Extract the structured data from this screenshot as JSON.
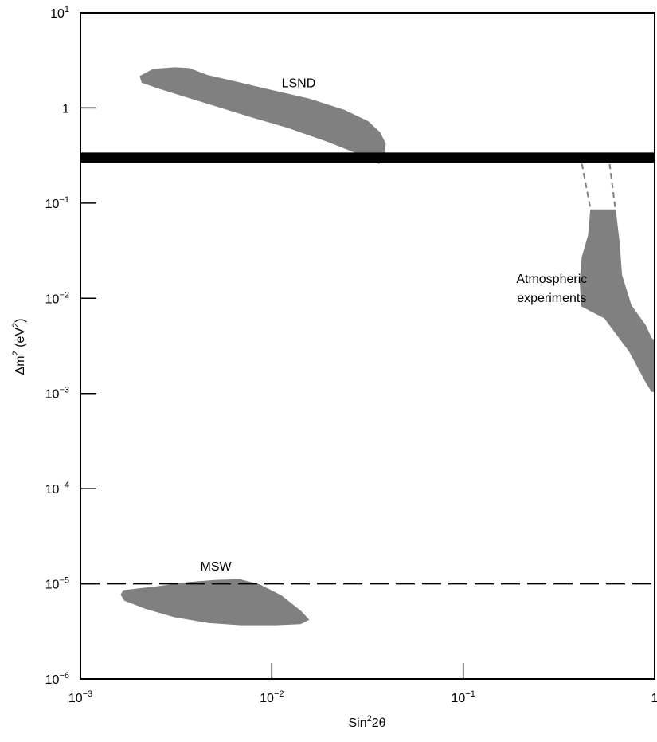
{
  "chart_data": {
    "type": "area",
    "title": "",
    "xlabel": {
      "base": "Sin",
      "sup": "2",
      "rest": "2θ"
    },
    "ylabel": {
      "pre": "Δm",
      "sup1": "2",
      "mid": " (eV",
      "sup2": "2",
      "post": ")"
    },
    "x_scale": "log",
    "y_scale": "log",
    "xlim": [
      0.001,
      1
    ],
    "ylim": [
      1e-06,
      10
    ],
    "x_ticks": [
      {
        "value": 0.001,
        "base": "10",
        "exp": "−3"
      },
      {
        "value": 0.01,
        "base": "10",
        "exp": "−2"
      },
      {
        "value": 0.1,
        "base": "10",
        "exp": "−1"
      },
      {
        "value": 1,
        "base": "1",
        "exp": ""
      }
    ],
    "y_ticks": [
      {
        "value": 1e-06,
        "base": "10",
        "exp": "−6"
      },
      {
        "value": 1e-05,
        "base": "10",
        "exp": "−5"
      },
      {
        "value": 0.0001,
        "base": "10",
        "exp": "−4"
      },
      {
        "value": 0.001,
        "base": "10",
        "exp": "−3"
      },
      {
        "value": 0.01,
        "base": "10",
        "exp": "−2"
      },
      {
        "value": 0.1,
        "base": "10",
        "exp": "−1"
      },
      {
        "value": 1,
        "base": "1",
        "exp": ""
      },
      {
        "value": 10,
        "base": "10",
        "exp": "1"
      }
    ],
    "grid": false,
    "colors": {
      "region": "#808080",
      "line": "#000000",
      "background": "#ffffff"
    },
    "regions": [
      {
        "name": "LSND",
        "label_lines": [
          "LSND"
        ],
        "label_at": [
          0.0138,
          1.65
        ],
        "label_anchor": "middle",
        "boundary": [
          [
            0.00205,
            2.15
          ],
          [
            0.0024,
            2.55
          ],
          [
            0.0031,
            2.65
          ],
          [
            0.0037,
            2.6
          ],
          [
            0.0046,
            2.2
          ],
          [
            0.0063,
            1.9
          ],
          [
            0.0097,
            1.55
          ],
          [
            0.0155,
            1.25
          ],
          [
            0.0238,
            0.95
          ],
          [
            0.0318,
            0.72
          ],
          [
            0.0367,
            0.55
          ],
          [
            0.0392,
            0.42
          ],
          [
            0.0386,
            0.29
          ],
          [
            0.0361,
            0.26
          ],
          [
            0.0296,
            0.32
          ],
          [
            0.0192,
            0.45
          ],
          [
            0.0122,
            0.62
          ],
          [
            0.0079,
            0.8
          ],
          [
            0.0051,
            1.05
          ],
          [
            0.0036,
            1.3
          ],
          [
            0.0026,
            1.6
          ],
          [
            0.0021,
            1.85
          ]
        ]
      },
      {
        "name": "Atmospheric experiments",
        "label_lines": [
          "Atmospheric",
          "experiments"
        ],
        "label_at": [
          0.29,
          0.0145
        ],
        "label_anchor": "middle",
        "boundary": [
          [
            0.463,
            0.085
          ],
          [
            0.624,
            0.085
          ],
          [
            0.652,
            0.04
          ],
          [
            0.673,
            0.0175
          ],
          [
            0.754,
            0.0084
          ],
          [
            0.895,
            0.0052
          ],
          [
            0.962,
            0.0038
          ],
          [
            1.0,
            0.0036
          ],
          [
            1.0,
            0.00105
          ],
          [
            0.966,
            0.00105
          ],
          [
            0.895,
            0.00135
          ],
          [
            0.736,
            0.0028
          ],
          [
            0.548,
            0.0062
          ],
          [
            0.415,
            0.0083
          ],
          [
            0.408,
            0.015
          ],
          [
            0.418,
            0.027
          ],
          [
            0.451,
            0.046
          ],
          [
            0.46,
            0.07
          ]
        ],
        "dashed_extension": [
          [
            [
              0.417,
              0.26
            ],
            [
              0.463,
              0.085
            ]
          ],
          [
            [
              0.582,
              0.26
            ],
            [
              0.624,
              0.085
            ]
          ]
        ]
      },
      {
        "name": "MSW",
        "label_lines": [
          "MSW"
        ],
        "label_at": [
          0.0051,
          1.38e-05
        ],
        "label_anchor": "middle",
        "boundary": [
          [
            0.00168,
            8.5e-06
          ],
          [
            0.0025,
            9.3e-06
          ],
          [
            0.0036,
            1.03e-05
          ],
          [
            0.0051,
            1.09e-05
          ],
          [
            0.0068,
            1.11e-05
          ],
          [
            0.0086,
            9.8e-06
          ],
          [
            0.0112,
            7.5e-06
          ],
          [
            0.0141,
            5.2e-06
          ],
          [
            0.0156,
            4.2e-06
          ],
          [
            0.0141,
            3.8e-06
          ],
          [
            0.0105,
            3.7e-06
          ],
          [
            0.0069,
            3.7e-06
          ],
          [
            0.0047,
            3.9e-06
          ],
          [
            0.0031,
            4.5e-06
          ],
          [
            0.0022,
            5.5e-06
          ],
          [
            0.0017,
            6.7e-06
          ],
          [
            0.00163,
            7.7e-06
          ]
        ]
      }
    ],
    "horizontal_lines": [
      {
        "y": 0.3,
        "style": "thick-band",
        "y_range": [
          0.265,
          0.34
        ]
      },
      {
        "y": 0.26,
        "style": "dashed"
      },
      {
        "y": 1e-05,
        "style": "dashed"
      }
    ]
  }
}
